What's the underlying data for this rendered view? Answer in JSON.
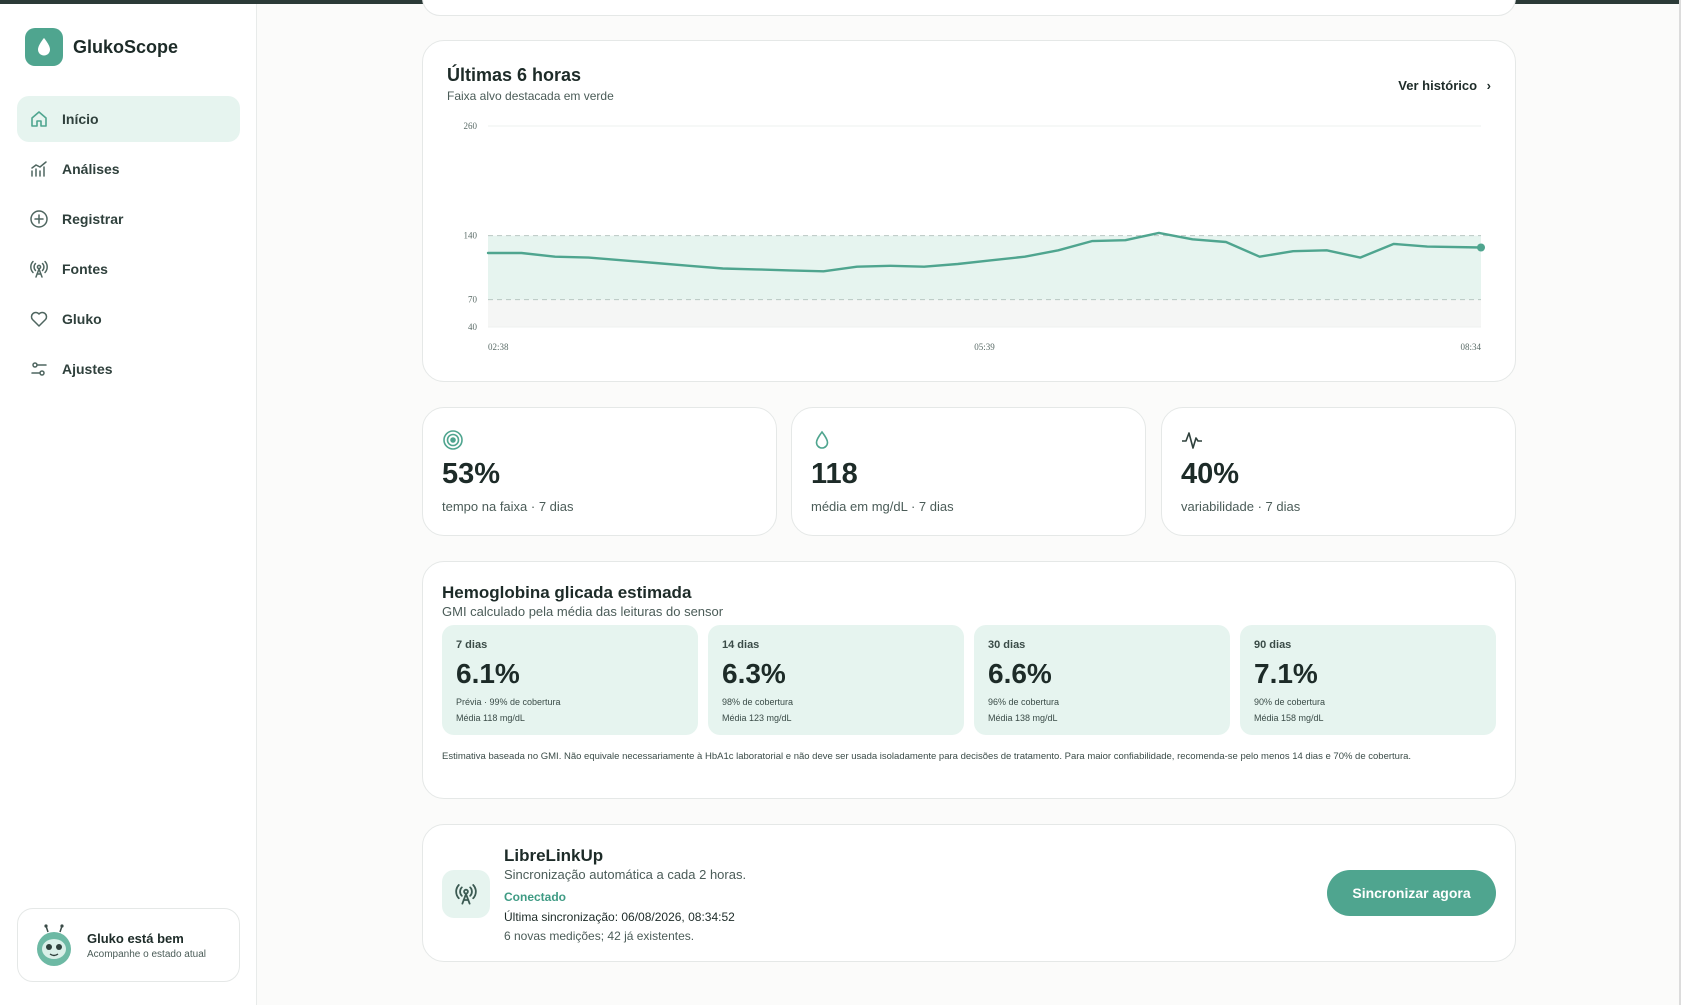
{
  "app": {
    "name": "GlukoScope"
  },
  "sidebar": {
    "items": [
      {
        "label": "Início",
        "icon": "home-icon",
        "active": true
      },
      {
        "label": "Análises",
        "icon": "chart-icon"
      },
      {
        "label": "Registrar",
        "icon": "plus-circle-icon"
      },
      {
        "label": "Fontes",
        "icon": "antenna-icon"
      },
      {
        "label": "Gluko",
        "icon": "heart-icon"
      },
      {
        "label": "Ajustes",
        "icon": "sliders-icon"
      }
    ],
    "mascot": {
      "title": "Gluko está bem",
      "subtitle": "Acompanhe o estado atual"
    }
  },
  "chart_card": {
    "title": "Últimas 6 horas",
    "subtitle": "Faixa alvo destacada em verde",
    "link": "Ver histórico",
    "link_arrow": "›"
  },
  "chart_data": {
    "type": "line",
    "ylim": [
      40,
      260
    ],
    "yticks": [
      "260",
      "140",
      "70",
      "40"
    ],
    "target_range": [
      70,
      140
    ],
    "xticks": [
      "02:38",
      "05:39",
      "08:34"
    ],
    "x_minutes_from_start": [
      0,
      10,
      20,
      30,
      40,
      50,
      60,
      70,
      80,
      90,
      100,
      110,
      120,
      130,
      140,
      150,
      160,
      170,
      180,
      190,
      200,
      210,
      220,
      230,
      240,
      250,
      260,
      270,
      280,
      296
    ],
    "values": [
      121,
      121,
      117,
      116,
      113,
      110,
      107,
      104,
      103,
      102,
      101,
      106,
      107,
      106,
      109,
      113,
      117,
      124,
      134,
      135,
      143,
      136,
      133,
      117,
      123,
      124,
      116,
      131,
      128,
      127
    ],
    "accent": "#4fa58f"
  },
  "stats": [
    {
      "icon": "target-icon",
      "value": "53%",
      "label": "tempo na faixa · 7 dias"
    },
    {
      "icon": "drop-icon",
      "value": "118",
      "label": "média em mg/dL · 7 dias"
    },
    {
      "icon": "pulse-icon",
      "value": "40%",
      "label": "variabilidade · 7 dias"
    }
  ],
  "gmi": {
    "title": "Hemoglobina glicada estimada",
    "subtitle": "GMI calculado pela média das leituras do sensor",
    "periods": [
      {
        "period": "7 dias",
        "value": "6.1%",
        "coverage": "Prévia · 99% de cobertura",
        "mean": "Média 118 mg/dL"
      },
      {
        "period": "14 dias",
        "value": "6.3%",
        "coverage": "98% de cobertura",
        "mean": "Média 123 mg/dL"
      },
      {
        "period": "30 dias",
        "value": "6.6%",
        "coverage": "96% de cobertura",
        "mean": "Média 138 mg/dL"
      },
      {
        "period": "90 dias",
        "value": "7.1%",
        "coverage": "90% de cobertura",
        "mean": "Média 158 mg/dL"
      }
    ],
    "note": "Estimativa baseada no GMI. Não equivale necessariamente à HbA1c laboratorial e não deve ser usada isoladamente para decisões de tratamento. Para maior confiabilidade, recomenda-se pelo menos 14 dias e 70% de cobertura."
  },
  "sync": {
    "title": "LibreLinkUp",
    "subtitle": "Sincronização automática a cada 2 horas.",
    "status": "Conectado",
    "last": "Última sincronização: 06/08/2026, 08:34:52",
    "new": "6 novas medições; 42 já existentes.",
    "button": "Sincronizar agora"
  }
}
